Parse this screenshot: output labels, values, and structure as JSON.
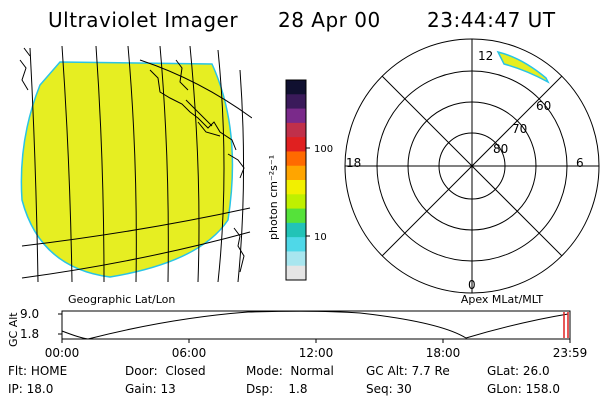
{
  "header": {
    "title": "Ultraviolet Imager",
    "date": "28 Apr 00",
    "time": "23:44:47 UT"
  },
  "geo_map": {
    "caption": "Geographic Lat/Lon",
    "fill_color": "#e6ee22",
    "edge_color": "#29c4e6"
  },
  "colorbar": {
    "unit_label": "photon cm⁻²s⁻¹",
    "ticks": [
      "100",
      "10"
    ],
    "colors": [
      "#101030",
      "#3a1a5a",
      "#7a2a8a",
      "#c0304a",
      "#e02020",
      "#ff6a00",
      "#ffa500",
      "#f2f000",
      "#bff000",
      "#55e23a",
      "#22c3b7",
      "#4fd8e8",
      "#a8e6ef",
      "#e5e5e5"
    ]
  },
  "polar_plot": {
    "caption": "Apex MLat/MLT",
    "mlt_labels": [
      "12",
      "18",
      "6",
      "0"
    ],
    "lat_labels": [
      "60",
      "70",
      "80"
    ],
    "aurora_color": "#e6ee22"
  },
  "alt_plot": {
    "ylabel": "GC Alt",
    "y_ticks": [
      "9.0",
      "1.8"
    ],
    "x_ticks": [
      "00:00",
      "06:00",
      "12:00",
      "18:00",
      "23:59"
    ],
    "marker_color": "#e02020"
  },
  "status": {
    "row1": [
      {
        "label": "Flt:",
        "value": "HOME"
      },
      {
        "label": "Door:",
        "value": "Closed"
      },
      {
        "label": "Mode:",
        "value": "Normal"
      },
      {
        "label": "GC Alt:",
        "value": "7.7 Re"
      },
      {
        "label": "GLat:",
        "value": "26.0"
      }
    ],
    "row2": [
      {
        "label": "IP:",
        "value": "18.0"
      },
      {
        "label": "Gain:",
        "value": "13"
      },
      {
        "label": "Dsp:",
        "value": "1.8"
      },
      {
        "label": "Seq:",
        "value": "30"
      },
      {
        "label": "GLon:",
        "value": "158.0"
      }
    ]
  }
}
